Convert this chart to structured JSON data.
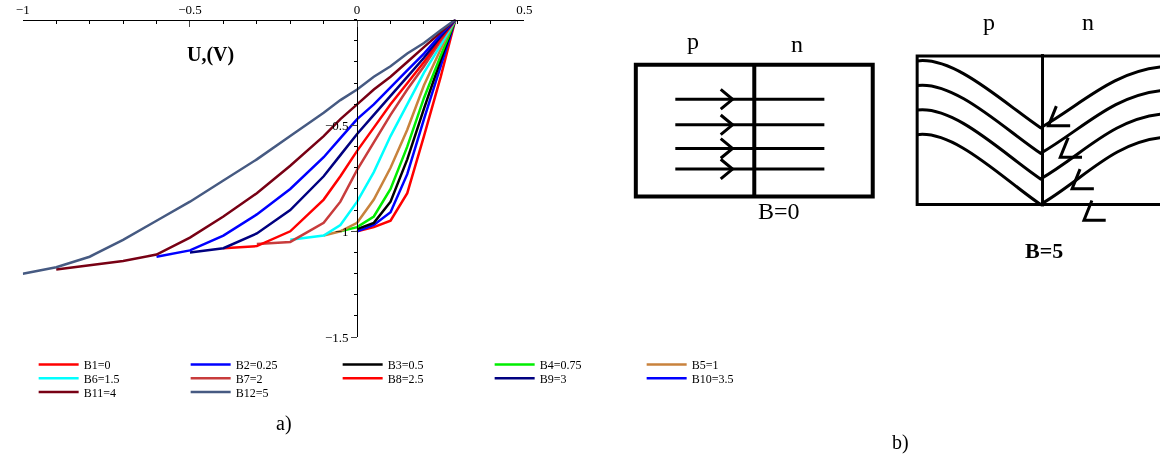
{
  "chart_data": [
    {
      "type": "line",
      "xlabel": "U,(V)",
      "x": [
        -1,
        -0.9,
        -0.8,
        -0.7,
        -0.6,
        -0.5,
        -0.4,
        -0.3,
        -0.2,
        -0.1,
        -0.05,
        0,
        0.05,
        0.1,
        0.15,
        0.2,
        0.25,
        0.294
      ],
      "series": [
        {
          "name": "B1=0",
          "color": "#ff0000",
          "values": [
            null,
            null,
            null,
            null,
            null,
            null,
            null,
            null,
            null,
            null,
            null,
            -1.0,
            -0.98,
            -0.95,
            -0.82,
            -0.55,
            -0.27,
            0
          ]
        },
        {
          "name": "B2=0.25",
          "color": "#0000ff",
          "values": [
            null,
            null,
            null,
            null,
            null,
            null,
            null,
            null,
            null,
            null,
            null,
            -1.0,
            -0.97,
            -0.91,
            -0.73,
            -0.47,
            -0.22,
            0
          ]
        },
        {
          "name": "B3=0.5",
          "color": "#000000",
          "values": [
            null,
            null,
            null,
            null,
            null,
            null,
            null,
            null,
            null,
            null,
            null,
            -0.99,
            -0.96,
            -0.86,
            -0.66,
            -0.42,
            -0.19,
            0
          ]
        },
        {
          "name": "B4=0.75",
          "color": "#00ee00",
          "values": [
            null,
            null,
            null,
            null,
            null,
            null,
            null,
            null,
            null,
            null,
            -1.0,
            -0.98,
            -0.93,
            -0.8,
            -0.6,
            -0.37,
            -0.17,
            0
          ]
        },
        {
          "name": "B5=1",
          "color": "#c8823c",
          "values": [
            null,
            null,
            null,
            null,
            null,
            null,
            null,
            null,
            null,
            -1.02,
            -1.0,
            -0.96,
            -0.85,
            -0.7,
            -0.52,
            -0.31,
            -0.14,
            0
          ]
        },
        {
          "name": "B6=1.5",
          "color": "#00ffff",
          "values": [
            null,
            null,
            null,
            null,
            null,
            null,
            null,
            null,
            -1.04,
            -1.02,
            -0.97,
            -0.86,
            -0.72,
            -0.55,
            -0.4,
            -0.25,
            -0.12,
            0
          ]
        },
        {
          "name": "B7=2",
          "color": "#c83c3c",
          "values": [
            null,
            null,
            null,
            null,
            null,
            null,
            null,
            -1.06,
            -1.05,
            -0.96,
            -0.86,
            -0.71,
            -0.58,
            -0.45,
            -0.33,
            -0.22,
            -0.1,
            0
          ]
        },
        {
          "name": "B8=2.5",
          "color": "#ff0000",
          "values": [
            null,
            null,
            null,
            null,
            null,
            null,
            -1.08,
            -1.07,
            -1.0,
            -0.85,
            -0.74,
            -0.62,
            -0.51,
            -0.4,
            -0.3,
            -0.2,
            -0.09,
            0
          ]
        },
        {
          "name": "B9=3",
          "color": "#000080",
          "values": [
            null,
            null,
            null,
            null,
            null,
            -1.1,
            -1.08,
            -1.01,
            -0.9,
            -0.74,
            -0.64,
            -0.54,
            -0.45,
            -0.36,
            -0.27,
            -0.18,
            -0.08,
            0
          ]
        },
        {
          "name": "B10=3.5",
          "color": "#0000ff",
          "values": [
            null,
            null,
            null,
            null,
            -1.12,
            -1.09,
            -1.02,
            -0.92,
            -0.8,
            -0.65,
            -0.56,
            -0.47,
            -0.4,
            -0.32,
            -0.24,
            -0.16,
            -0.07,
            0
          ]
        },
        {
          "name": "B11=4",
          "color": "#780014",
          "values": [
            null,
            -1.18,
            -1.16,
            -1.14,
            -1.11,
            -1.03,
            -0.93,
            -0.82,
            -0.69,
            -0.55,
            -0.47,
            -0.4,
            -0.33,
            -0.27,
            -0.2,
            -0.13,
            -0.06,
            0
          ]
        },
        {
          "name": "B12=5",
          "color": "#465a82",
          "values": [
            -1.2,
            -1.17,
            -1.12,
            -1.04,
            -0.95,
            -0.86,
            -0.76,
            -0.66,
            -0.55,
            -0.44,
            -0.38,
            -0.33,
            -0.27,
            -0.22,
            -0.16,
            -0.11,
            -0.05,
            0
          ]
        }
      ],
      "xlim": [
        -1,
        0.5
      ],
      "ylim": [
        -1.5,
        0
      ],
      "xticks": [
        -1,
        -0.5,
        0,
        0.5
      ],
      "yticks": [
        -1.5,
        -1,
        -0.5
      ],
      "legend": "bottom",
      "line_style": "solid",
      "marker": "none",
      "annotations": [
        "a)"
      ]
    },
    {
      "type": "other",
      "annotations": [
        "p",
        "n",
        "B=0",
        "p",
        "n",
        "B=5",
        "b)"
      ]
    }
  ]
}
